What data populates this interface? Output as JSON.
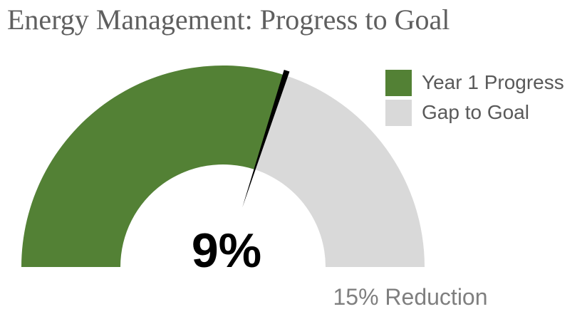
{
  "chart_data": {
    "type": "gauge",
    "title": "Energy Management: Progress to Goal",
    "center_label": "9%",
    "goal_label": "15% Reduction",
    "goal": 15,
    "series": [
      {
        "name": "Year 1 Progress",
        "value": 9,
        "color": "#538135"
      },
      {
        "name": "Gap to Goal",
        "value": 6,
        "color": "#d9d9d9"
      }
    ],
    "needle_value": 9,
    "needle_color": "#000000",
    "legend_position": "top-right"
  }
}
